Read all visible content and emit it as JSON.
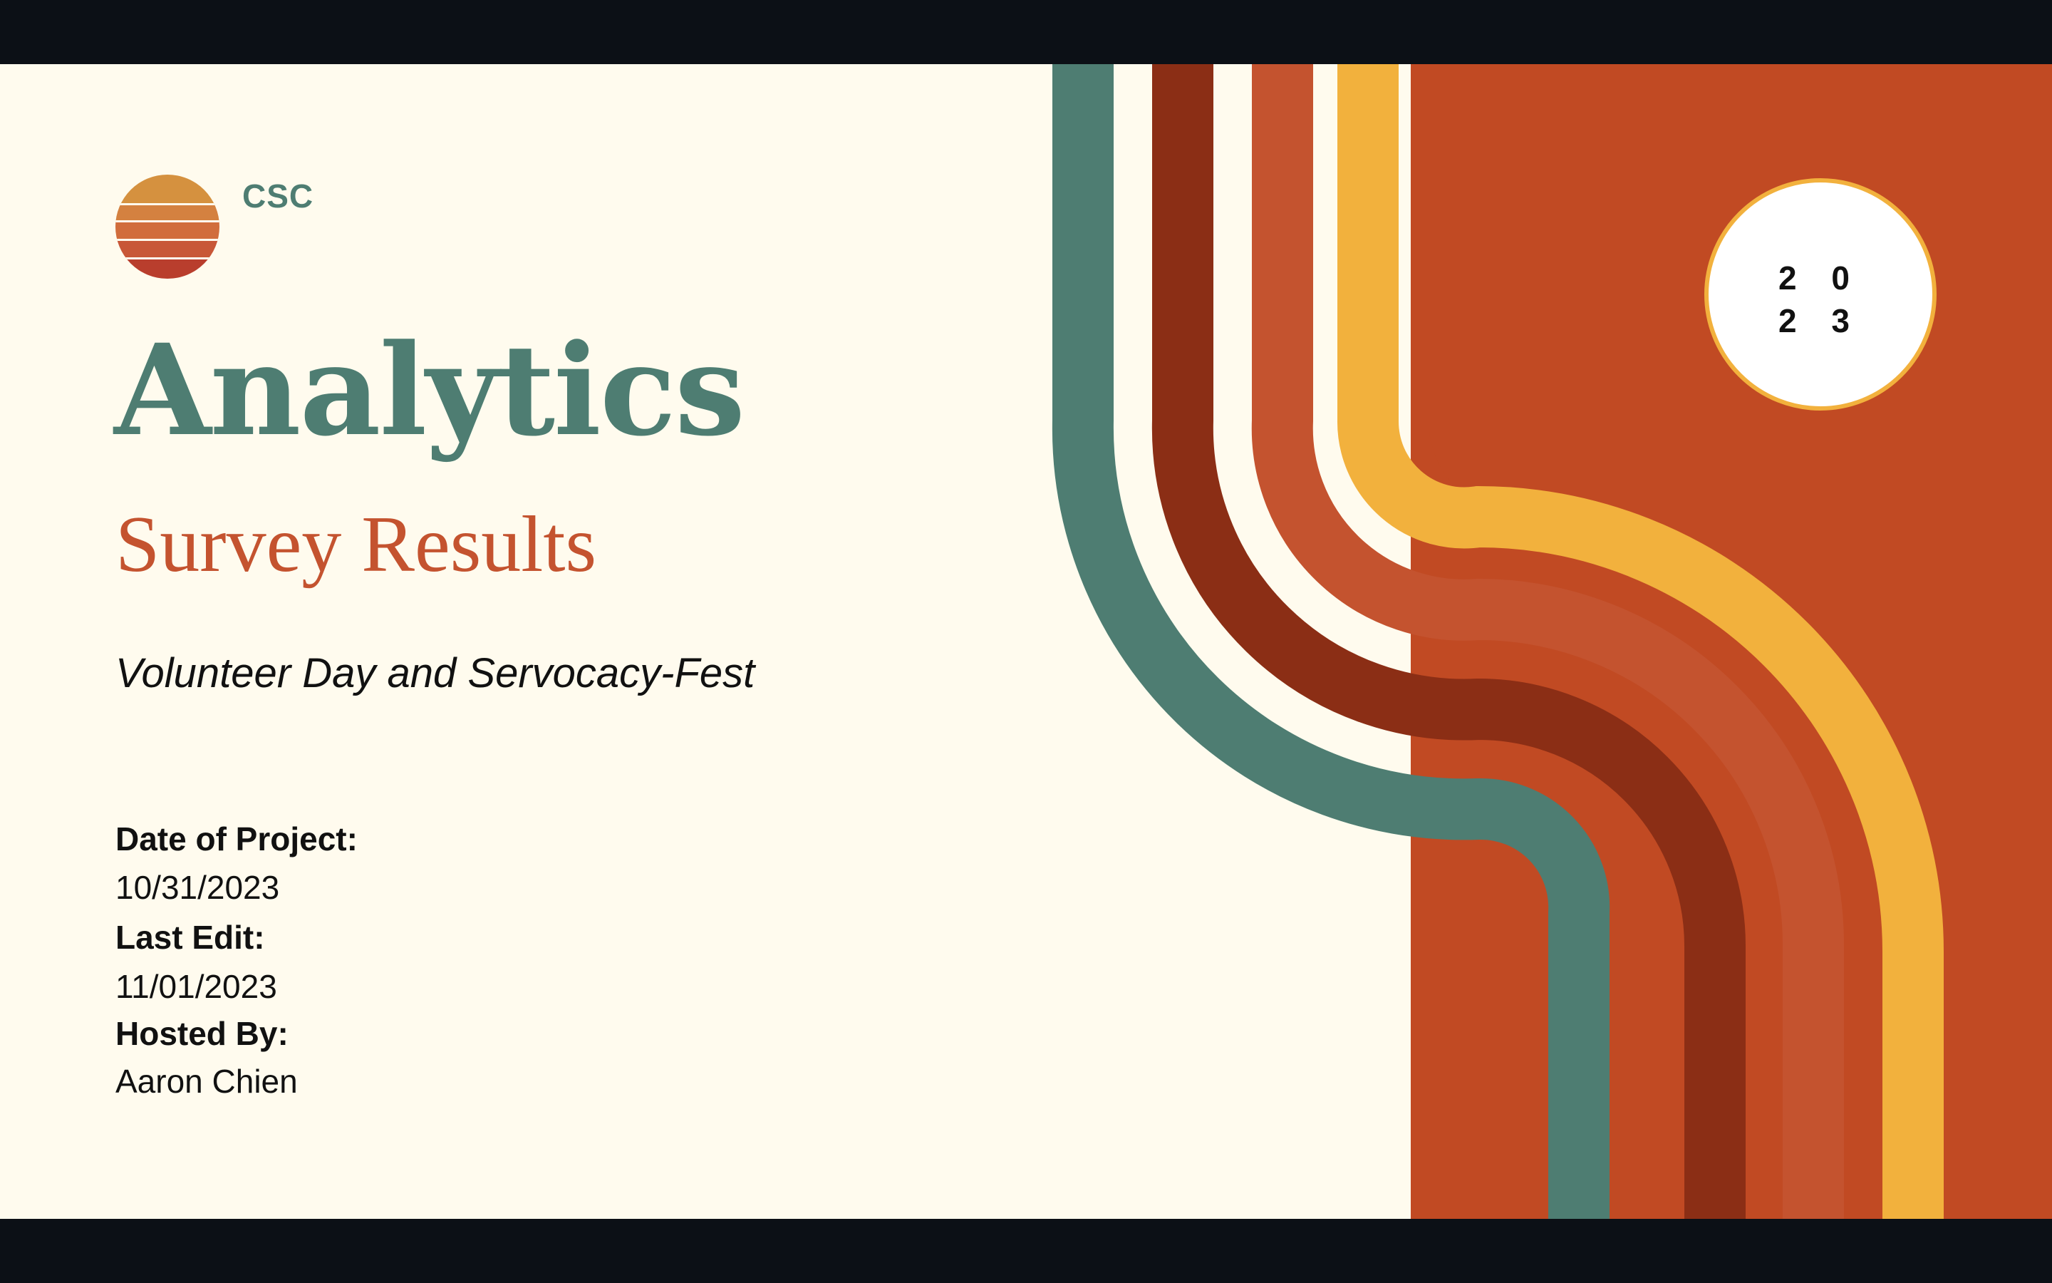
{
  "brand": {
    "name": "CSC"
  },
  "slide": {
    "title": "Analytics",
    "subtitle": "Survey Results",
    "event": "Volunteer Day and Servocacy-Fest",
    "year_line1": "2 0",
    "year_line2": "2 3"
  },
  "details": {
    "date_label": "Date of Project:",
    "date_value": "10/31/2023",
    "edit_label": "Last Edit:",
    "edit_value": "11/01/2023",
    "host_label": "Hosted By:",
    "host_value": "Aaron Chien"
  },
  "colors": {
    "background": "#fffbee",
    "frame": "#0c1016",
    "teal": "#4e7d72",
    "maroon": "#8b2e15",
    "rust": "#c4532f",
    "mustard": "#f2b13d",
    "orange_panel": "#c14a23"
  }
}
